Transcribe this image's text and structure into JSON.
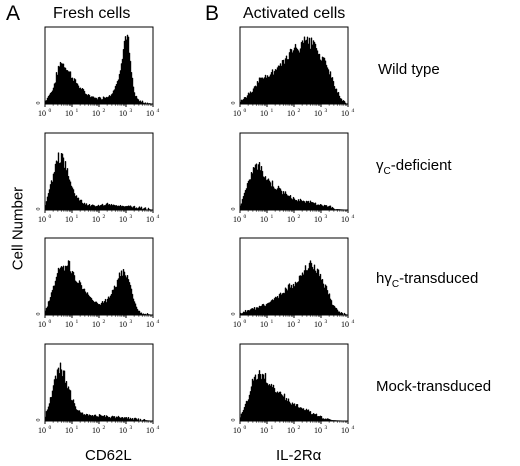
{
  "panels": {
    "A": {
      "letter": "A",
      "title": "Fresh cells",
      "xlabel": "CD62L"
    },
    "B": {
      "letter": "B",
      "title": "Activated cells",
      "xlabel": "IL-2Rα"
    }
  },
  "ylabel": "Cell Number",
  "conditions": [
    {
      "id": "wt",
      "prefix": "",
      "gamma": "",
      "sub": "",
      "suffix": "Wild type"
    },
    {
      "id": "gc_def",
      "prefix": "",
      "gamma": "γ",
      "sub": "C",
      "suffix": "-deficient"
    },
    {
      "id": "hgc",
      "prefix": "h",
      "gamma": "γ",
      "sub": "C",
      "suffix": "-transduced"
    },
    {
      "id": "mock",
      "prefix": "",
      "gamma": "",
      "sub": "",
      "suffix": "Mock-transduced"
    }
  ],
  "x_ticks": [
    {
      "base": "10",
      "exp": "0"
    },
    {
      "base": "10",
      "exp": "1"
    },
    {
      "base": "10",
      "exp": "2"
    },
    {
      "base": "10",
      "exp": "3"
    },
    {
      "base": "10",
      "exp": "4"
    }
  ],
  "y_tick_label": "0",
  "chart_data": [
    {
      "type": "area",
      "panel": "A",
      "condition": "Wild type",
      "x_scale": "log",
      "xlim": [
        1,
        10000
      ],
      "series": [
        {
          "x": [
            1,
            2,
            3,
            4,
            6,
            10,
            15,
            25,
            40,
            70,
            120,
            200,
            300,
            500,
            700,
            1000,
            1200,
            1500,
            2000,
            3000,
            5000,
            10000
          ],
          "y": [
            0.03,
            0.2,
            0.45,
            0.58,
            0.5,
            0.38,
            0.28,
            0.18,
            0.12,
            0.08,
            0.08,
            0.1,
            0.14,
            0.3,
            0.62,
            0.95,
            0.88,
            0.5,
            0.15,
            0.04,
            0.02,
            0.0
          ]
        }
      ]
    },
    {
      "type": "area",
      "panel": "A",
      "condition": "γC-deficient",
      "x_scale": "log",
      "xlim": [
        1,
        10000
      ],
      "series": [
        {
          "x": [
            1,
            2,
            3,
            4,
            6,
            10,
            15,
            25,
            40,
            70,
            120,
            200,
            400,
            700,
            1000,
            2000,
            5000,
            10000
          ],
          "y": [
            0.05,
            0.45,
            0.7,
            0.72,
            0.58,
            0.32,
            0.18,
            0.1,
            0.07,
            0.06,
            0.06,
            0.08,
            0.06,
            0.05,
            0.06,
            0.04,
            0.02,
            0.0
          ]
        }
      ]
    },
    {
      "type": "area",
      "panel": "A",
      "condition": "hγC-transduced",
      "x_scale": "log",
      "xlim": [
        1,
        10000
      ],
      "series": [
        {
          "x": [
            1,
            2,
            3,
            5,
            8,
            12,
            20,
            35,
            60,
            100,
            200,
            350,
            600,
            900,
            1200,
            1800,
            2500,
            4000,
            10000
          ],
          "y": [
            0.03,
            0.35,
            0.58,
            0.68,
            0.66,
            0.55,
            0.42,
            0.3,
            0.2,
            0.15,
            0.2,
            0.35,
            0.52,
            0.6,
            0.5,
            0.25,
            0.08,
            0.02,
            0.0
          ]
        }
      ]
    },
    {
      "type": "area",
      "panel": "A",
      "condition": "Mock-transduced",
      "x_scale": "log",
      "xlim": [
        1,
        10000
      ],
      "series": [
        {
          "x": [
            1,
            2,
            3,
            4,
            6,
            10,
            15,
            25,
            40,
            70,
            120,
            200,
            400,
            700,
            1000,
            2000,
            5000,
            10000
          ],
          "y": [
            0.05,
            0.42,
            0.68,
            0.72,
            0.55,
            0.3,
            0.16,
            0.1,
            0.08,
            0.07,
            0.07,
            0.06,
            0.05,
            0.05,
            0.04,
            0.03,
            0.01,
            0.0
          ]
        }
      ]
    },
    {
      "type": "area",
      "panel": "B",
      "condition": "Wild type",
      "x_scale": "log",
      "xlim": [
        1,
        10000
      ],
      "series": [
        {
          "x": [
            1,
            2,
            3,
            5,
            10,
            20,
            40,
            70,
            120,
            200,
            300,
            500,
            800,
            1200,
            2000,
            3500,
            6000,
            10000
          ],
          "y": [
            0.02,
            0.12,
            0.2,
            0.32,
            0.38,
            0.45,
            0.55,
            0.7,
            0.75,
            0.8,
            0.85,
            0.82,
            0.72,
            0.6,
            0.45,
            0.2,
            0.05,
            0.0
          ]
        }
      ]
    },
    {
      "type": "area",
      "panel": "B",
      "condition": "γC-deficient",
      "x_scale": "log",
      "xlim": [
        1,
        10000
      ],
      "series": [
        {
          "x": [
            1,
            2,
            3,
            5,
            8,
            12,
            20,
            35,
            60,
            100,
            200,
            400,
            800,
            1500,
            2500,
            4000,
            10000
          ],
          "y": [
            0.05,
            0.35,
            0.55,
            0.62,
            0.48,
            0.4,
            0.32,
            0.25,
            0.2,
            0.15,
            0.12,
            0.1,
            0.08,
            0.06,
            0.04,
            0.01,
            0.0
          ]
        }
      ]
    },
    {
      "type": "area",
      "panel": "B",
      "condition": "hγC-transduced",
      "x_scale": "log",
      "xlim": [
        1,
        10000
      ],
      "series": [
        {
          "x": [
            1,
            2,
            5,
            10,
            20,
            40,
            70,
            120,
            200,
            300,
            500,
            800,
            1200,
            2000,
            3000,
            5000,
            10000
          ],
          "y": [
            0.02,
            0.06,
            0.1,
            0.15,
            0.22,
            0.3,
            0.38,
            0.45,
            0.55,
            0.65,
            0.68,
            0.6,
            0.45,
            0.28,
            0.12,
            0.03,
            0.0
          ]
        }
      ]
    },
    {
      "type": "area",
      "panel": "B",
      "condition": "Mock-transduced",
      "x_scale": "log",
      "xlim": [
        1,
        10000
      ],
      "series": [
        {
          "x": [
            1,
            2,
            3,
            5,
            8,
            12,
            20,
            35,
            60,
            100,
            200,
            400,
            700,
            1000,
            1500,
            2500,
            10000
          ],
          "y": [
            0.05,
            0.3,
            0.55,
            0.65,
            0.6,
            0.5,
            0.42,
            0.35,
            0.28,
            0.22,
            0.18,
            0.12,
            0.08,
            0.05,
            0.03,
            0.01,
            0.0
          ]
        }
      ]
    }
  ]
}
